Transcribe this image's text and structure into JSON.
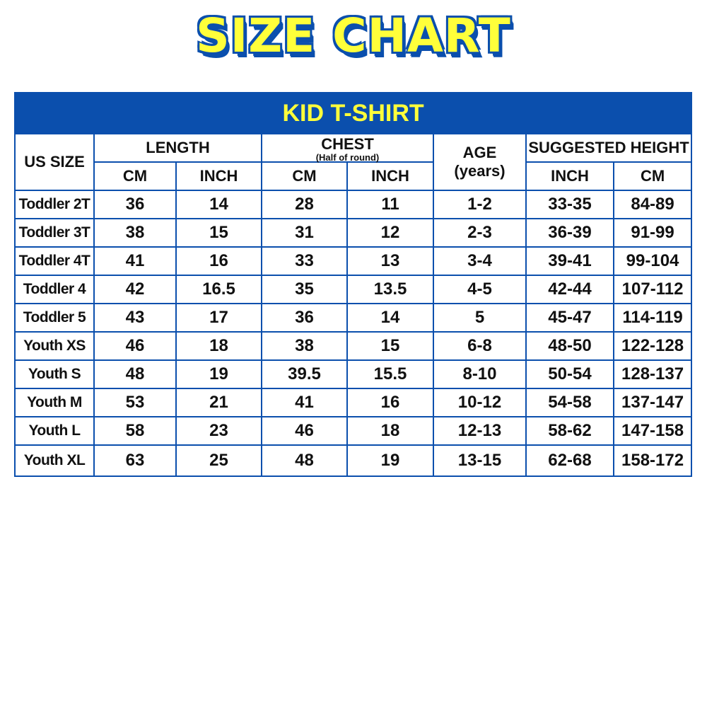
{
  "title": "SIZE CHART",
  "table": {
    "caption": "KID T-SHIRT",
    "headers": {
      "us_size": "US SIZE",
      "length": "LENGTH",
      "chest": "CHEST",
      "chest_note": "(Half of round)",
      "age": "AGE",
      "age_unit": "(years)",
      "height": "SUGGESTED HEIGHT",
      "cm": "CM",
      "inch": "INCH"
    },
    "rows": [
      [
        "Toddler 2T",
        "36",
        "14",
        "28",
        "11",
        "1-2",
        "33-35",
        "84-89"
      ],
      [
        "Toddler 3T",
        "38",
        "15",
        "31",
        "12",
        "2-3",
        "36-39",
        "91-99"
      ],
      [
        "Toddler 4T",
        "41",
        "16",
        "33",
        "13",
        "3-4",
        "39-41",
        "99-104"
      ],
      [
        "Toddler 4",
        "42",
        "16.5",
        "35",
        "13.5",
        "4-5",
        "42-44",
        "107-112"
      ],
      [
        "Toddler 5",
        "43",
        "17",
        "36",
        "14",
        "5",
        "45-47",
        "114-119"
      ],
      [
        "Youth XS",
        "46",
        "18",
        "38",
        "15",
        "6-8",
        "48-50",
        "122-128"
      ],
      [
        "Youth S",
        "48",
        "19",
        "39.5",
        "15.5",
        "8-10",
        "50-54",
        "128-137"
      ],
      [
        "Youth M",
        "53",
        "21",
        "41",
        "16",
        "10-12",
        "54-58",
        "137-147"
      ],
      [
        "Youth L",
        "58",
        "23",
        "46",
        "18",
        "12-13",
        "58-62",
        "147-158"
      ],
      [
        "Youth XL",
        "63",
        "25",
        "48",
        "19",
        "13-15",
        "62-68",
        "158-172"
      ]
    ]
  },
  "colors": {
    "primary": "#0b4fad",
    "accent": "#ffff3a"
  }
}
